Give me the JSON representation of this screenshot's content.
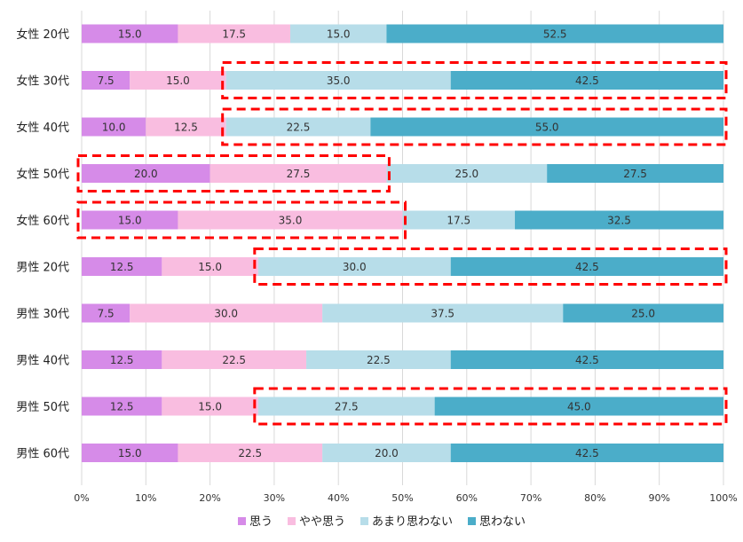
{
  "chart_data": {
    "type": "bar",
    "orientation": "horizontal",
    "stacked": true,
    "percent": true,
    "categories": [
      "女性 20代",
      "女性 30代",
      "女性 40代",
      "女性 50代",
      "女性 60代",
      "男性 20代",
      "男性 30代",
      "男性 40代",
      "男性 50代",
      "男性 60代"
    ],
    "series": [
      {
        "name": "思う",
        "color": "#d68be8",
        "values": [
          15.0,
          7.5,
          10.0,
          20.0,
          15.0,
          12.5,
          7.5,
          12.5,
          12.5,
          15.0
        ]
      },
      {
        "name": "やや思う",
        "color": "#f9bde0",
        "values": [
          17.5,
          15.0,
          12.5,
          27.5,
          35.0,
          15.0,
          30.0,
          22.5,
          15.0,
          22.5
        ]
      },
      {
        "name": "あまり思わない",
        "color": "#b7dde9",
        "values": [
          15.0,
          35.0,
          22.5,
          25.0,
          17.5,
          30.0,
          37.5,
          22.5,
          27.5,
          20.0
        ]
      },
      {
        "name": "思わない",
        "color": "#4badc9",
        "values": [
          52.5,
          42.5,
          55.0,
          27.5,
          32.5,
          42.5,
          25.0,
          42.5,
          45.0,
          42.5
        ]
      }
    ],
    "xlim": [
      0,
      100
    ],
    "xticks": [
      "0%",
      "10%",
      "20%",
      "30%",
      "40%",
      "50%",
      "60%",
      "70%",
      "80%",
      "90%",
      "100%"
    ],
    "grid": true,
    "legend": "bottom",
    "annotations": [
      {
        "type": "dashed-box",
        "category_index": 1,
        "from_series": 2,
        "to_series": 3
      },
      {
        "type": "dashed-box",
        "category_index": 2,
        "from_series": 2,
        "to_series": 3
      },
      {
        "type": "dashed-box",
        "category_index": 3,
        "from_series": 0,
        "to_series": 1
      },
      {
        "type": "dashed-box",
        "category_index": 4,
        "from_series": 0,
        "to_series": 1
      },
      {
        "type": "dashed-box",
        "category_index": 5,
        "from_series": 2,
        "to_series": 3
      },
      {
        "type": "dashed-box",
        "category_index": 8,
        "from_series": 2,
        "to_series": 3
      }
    ],
    "highlight_color": "#ff0000"
  }
}
